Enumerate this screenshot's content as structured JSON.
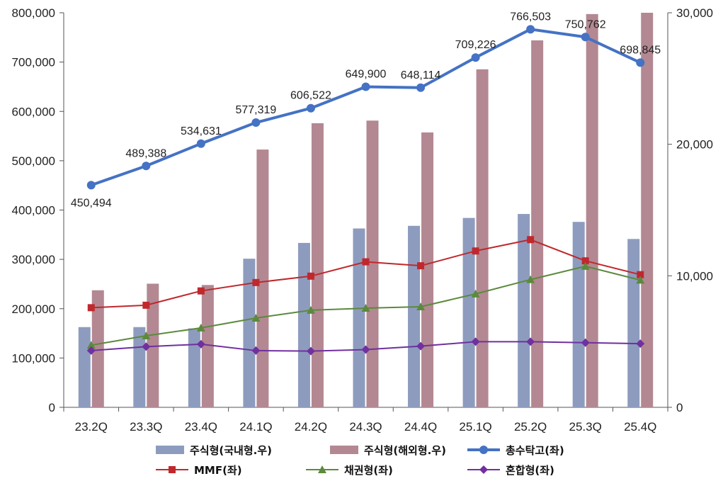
{
  "chart_data": {
    "type": "bar-line-combo",
    "categories": [
      "23.2Q",
      "23.3Q",
      "23.4Q",
      "24.1Q",
      "24.2Q",
      "24.3Q",
      "24.4Q",
      "25.1Q",
      "25.2Q",
      "25.3Q",
      "25.4Q"
    ],
    "left_axis": {
      "ylim": [
        0,
        800000
      ],
      "ticks": [
        "0",
        "100,000",
        "200,000",
        "300,000",
        "400,000",
        "500,000",
        "600,000",
        "700,000",
        "800,000"
      ]
    },
    "right_axis": {
      "ylim": [
        0,
        30000
      ],
      "ticks": [
        "0",
        "10,000",
        "20,000",
        "30,000"
      ]
    },
    "grid": false,
    "legend_position": "bottom",
    "series": [
      {
        "name": "주식형(국내형.우)",
        "type": "bar",
        "axis": "right",
        "color": "#8d9cbe",
        "values": [
          6100,
          6100,
          6000,
          11300,
          12500,
          13600,
          13800,
          14400,
          14700,
          14100,
          12800
        ]
      },
      {
        "name": "주식형(해외형.우)",
        "type": "bar",
        "axis": "right",
        "color": "#b38892",
        "values": [
          8900,
          9400,
          9300,
          19600,
          21600,
          21800,
          20900,
          25700,
          27900,
          29900,
          30300
        ]
      },
      {
        "name": "총수탁고(좌)",
        "type": "line",
        "axis": "left",
        "color": "#4472c4",
        "marker": "circle",
        "values": [
          450494,
          489388,
          534631,
          577319,
          606522,
          649900,
          648114,
          709226,
          766503,
          750762,
          698845
        ],
        "labels": [
          "450,494",
          "489,388",
          "534,631",
          "577,319",
          "606,522",
          "649,900",
          "648,114",
          "709,226",
          "766,503",
          "750,762",
          "698,845"
        ]
      },
      {
        "name": "MMF(좌)",
        "type": "line",
        "axis": "left",
        "color": "#c0282d",
        "marker": "square",
        "values": [
          202000,
          207000,
          236000,
          253000,
          266000,
          295000,
          287000,
          317000,
          340000,
          297000,
          269000
        ]
      },
      {
        "name": "채권형(좌)",
        "type": "line",
        "axis": "left",
        "color": "#5b8a3c",
        "marker": "triangle",
        "values": [
          126000,
          145000,
          161000,
          181000,
          197000,
          201000,
          204000,
          230000,
          259000,
          286000,
          258000
        ]
      },
      {
        "name": "혼합형(좌)",
        "type": "line",
        "axis": "left",
        "color": "#7030a0",
        "marker": "diamond",
        "values": [
          115000,
          123000,
          128000,
          115000,
          114000,
          117000,
          124000,
          133000,
          133000,
          131000,
          129000
        ]
      }
    ]
  }
}
